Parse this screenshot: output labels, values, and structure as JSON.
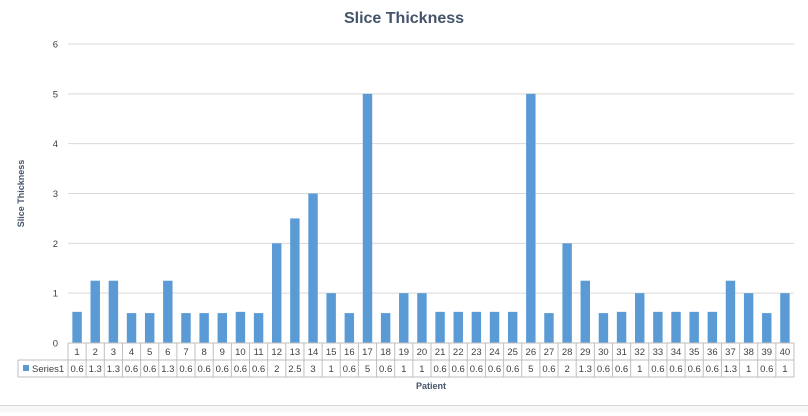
{
  "chart_data": {
    "type": "bar",
    "title": "Slice Thickness",
    "xlabel": "Patient",
    "ylabel": "Slice Thickness",
    "ylim": [
      0,
      6
    ],
    "yticks": [
      0,
      1,
      2,
      3,
      4,
      5,
      6
    ],
    "grid": true,
    "legend": "data-table",
    "color": "#5b9bd5",
    "categories": [
      "1",
      "2",
      "3",
      "4",
      "5",
      "6",
      "7",
      "8",
      "9",
      "10",
      "11",
      "12",
      "13",
      "14",
      "15",
      "16",
      "17",
      "18",
      "19",
      "20",
      "21",
      "22",
      "23",
      "24",
      "25",
      "26",
      "27",
      "28",
      "29",
      "30",
      "31",
      "32",
      "33",
      "34",
      "35",
      "36",
      "37",
      "38",
      "39",
      "40"
    ],
    "series": [
      {
        "name": "Series1",
        "values": [
          0.625,
          1.25,
          1.25,
          0.6,
          0.6,
          1.25,
          0.6,
          0.6,
          0.6,
          0.625,
          0.6,
          2,
          2.5,
          3,
          1,
          0.6,
          5,
          0.6,
          1,
          1,
          0.625,
          0.625,
          0.625,
          0.625,
          0.625,
          5,
          0.6,
          2,
          1.25,
          0.6,
          0.625,
          1,
          0.625,
          0.625,
          0.625,
          0.625,
          1.25,
          1,
          0.6,
          1
        ],
        "table_labels": [
          "0.6",
          "1.3",
          "1.3",
          "0.6",
          "0.6",
          "1.3",
          "0.6",
          "0.6",
          "0.6",
          "0.6",
          "0.6",
          "2",
          "2.5",
          "3",
          "1",
          "0.6",
          "5",
          "0.6",
          "1",
          "1",
          "0.6",
          "0.6",
          "0.6",
          "0.6",
          "0.6",
          "5",
          "0.6",
          "2",
          "1.3",
          "0.6",
          "0.6",
          "1",
          "0.6",
          "0.6",
          "0.6",
          "0.6",
          "1.3",
          "1",
          "0.6",
          "1"
        ]
      }
    ]
  }
}
